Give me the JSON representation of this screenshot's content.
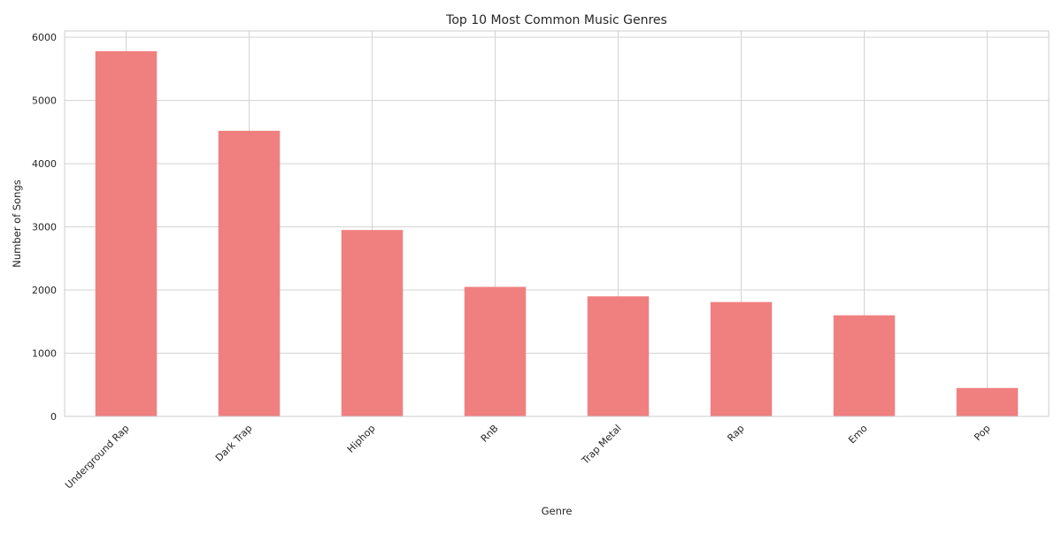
{
  "chart_data": {
    "type": "bar",
    "title": "Top 10 Most Common Music Genres",
    "xlabel": "Genre",
    "ylabel": "Number of Songs",
    "categories": [
      "Underground Rap",
      "Dark Trap",
      "Hiphop",
      "RnB",
      "Trap Metal",
      "Rap",
      "Emo",
      "Pop"
    ],
    "values": [
      5780,
      4520,
      2950,
      2050,
      1900,
      1810,
      1600,
      450
    ],
    "ylim": [
      0,
      6100
    ],
    "yticks": [
      0,
      1000,
      2000,
      3000,
      4000,
      5000,
      6000
    ],
    "grid": true,
    "bar_color": "#f08080",
    "grid_color": "#d3d3d3",
    "spine_color": "#cccccc",
    "background": "#ffffff"
  }
}
